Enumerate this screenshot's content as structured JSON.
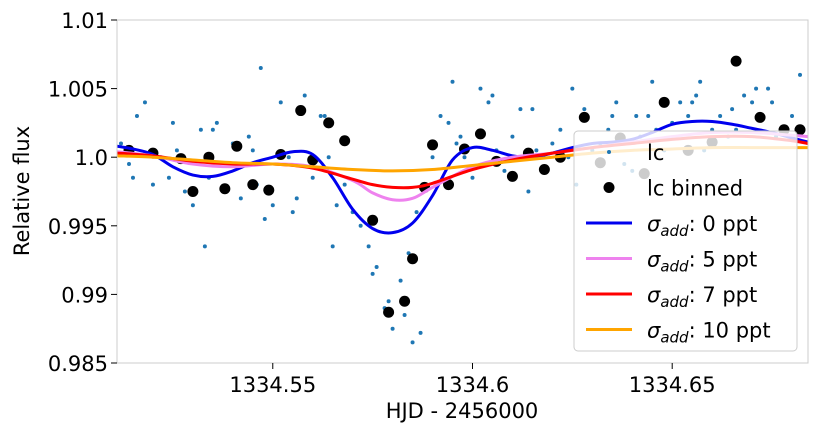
{
  "chart_data": {
    "type": "scatter",
    "xlabel": "HJD - 2456000",
    "ylabel": "Relative flux",
    "xlim": [
      1334.511,
      1334.684
    ],
    "ylim": [
      0.985,
      1.01
    ],
    "x_ticks": [
      1334.55,
      1334.6,
      1334.65
    ],
    "x_tick_labels": [
      "1334.55",
      "1334.6",
      "1334.65"
    ],
    "y_ticks": [
      0.985,
      0.99,
      0.995,
      1.0,
      1.005,
      1.01
    ],
    "y_tick_labels": [
      "0.985",
      "0.99",
      "0.995",
      "1.0",
      "1.005",
      "1.01"
    ],
    "legend_position": "lower-right",
    "series": [
      {
        "name": "lc",
        "kind": "points",
        "color": "#1f77b4",
        "x": [
          1334.512,
          1334.514,
          1334.516,
          1334.518,
          1334.52,
          1334.522,
          1334.524,
          1334.526,
          1334.528,
          1334.53,
          1334.532,
          1334.534,
          1334.536,
          1334.538,
          1334.54,
          1334.542,
          1334.544,
          1334.546,
          1334.548,
          1334.55,
          1334.552,
          1334.554,
          1334.556,
          1334.558,
          1334.56,
          1334.562,
          1334.564,
          1334.566,
          1334.568,
          1334.57,
          1334.572,
          1334.574,
          1334.576,
          1334.578,
          1334.58,
          1334.582,
          1334.584,
          1334.586,
          1334.588,
          1334.59,
          1334.592,
          1334.594,
          1334.596,
          1334.598,
          1334.6,
          1334.602,
          1334.604,
          1334.606,
          1334.608,
          1334.61,
          1334.612,
          1334.614,
          1334.616,
          1334.618,
          1334.62,
          1334.622,
          1334.624,
          1334.626,
          1334.628,
          1334.63,
          1334.632,
          1334.634,
          1334.636,
          1334.638,
          1334.64,
          1334.642,
          1334.644,
          1334.646,
          1334.648,
          1334.65,
          1334.652,
          1334.654,
          1334.656,
          1334.658,
          1334.66,
          1334.662,
          1334.664,
          1334.666,
          1334.668,
          1334.67,
          1334.672,
          1334.674,
          1334.676,
          1334.678,
          1334.68,
          1334.682,
          1334.515,
          1334.525,
          1334.535,
          1334.545,
          1334.555,
          1334.565,
          1334.575,
          1334.585,
          1334.595,
          1334.605,
          1334.615,
          1334.625,
          1334.635,
          1334.645,
          1334.655,
          1334.665,
          1334.675,
          1334.533,
          1334.547,
          1334.563,
          1334.579,
          1334.583,
          1334.587,
          1334.597,
          1334.641,
          1334.657,
          1334.671
        ],
        "y": [
          1.001,
          0.9995,
          1.003,
          1.004,
          0.998,
          1.0,
          0.9985,
          1.0005,
          0.9975,
          0.9965,
          1.002,
          0.9985,
          1.0025,
          0.9975,
          1.001,
          0.997,
          1.0015,
          0.998,
          0.9955,
          0.9965,
          1.004,
          1.0,
          0.997,
          1.0045,
          0.9985,
          1.003,
          1.0,
          0.9965,
          0.998,
          0.996,
          0.995,
          0.9935,
          0.992,
          0.989,
          0.9875,
          0.991,
          0.993,
          0.996,
          0.998,
          1.0,
          1.003,
          1.0025,
          1.001,
          1.0,
          0.9985,
          1.005,
          1.004,
          1.0005,
          0.999,
          1.0015,
          1.0035,
          0.9975,
          1.0005,
          0.999,
          1.001,
          1.002,
          1.0,
          0.998,
          1.0035,
          1.0005,
          1.001,
          1.002,
          1.004,
          0.9995,
          0.999,
          1.0015,
          1.003,
          1.002,
          1.0005,
          1.0025,
          1.004,
          1.003,
          1.0045,
          1.0005,
          1.002,
          1.003,
          1.0015,
          1.002,
          1.0045,
          1.004,
          1.003,
          1.005,
          1.0015,
          1.002,
          1.003,
          1.006,
          0.9985,
          1.0025,
          1.002,
          1.0005,
          0.996,
          0.9935,
          0.9915,
          0.9865,
          1.0055,
          1.0045,
          1.0035,
          1.005,
          1.003,
          1.0055,
          1.004,
          1.0035,
          1.004,
          0.9935,
          1.0065,
          1.003,
          0.9895,
          0.9885,
          0.9872,
          1.0015,
          1.003,
          1.0055,
          1.005
        ]
      },
      {
        "name": "lc binned",
        "kind": "points",
        "color": "#000000",
        "x": [
          1334.514,
          1334.52,
          1334.527,
          1334.53,
          1334.534,
          1334.538,
          1334.541,
          1334.545,
          1334.549,
          1334.552,
          1334.557,
          1334.56,
          1334.564,
          1334.568,
          1334.575,
          1334.579,
          1334.583,
          1334.585,
          1334.588,
          1334.59,
          1334.594,
          1334.598,
          1334.602,
          1334.606,
          1334.61,
          1334.614,
          1334.618,
          1334.622,
          1334.628,
          1334.632,
          1334.637,
          1334.643,
          1334.648,
          1334.654,
          1334.66,
          1334.666,
          1334.672,
          1334.678,
          1334.682
        ],
        "y": [
          1.0005,
          1.0003,
          0.9999,
          0.9975,
          1.0,
          0.9977,
          1.0008,
          0.998,
          0.9976,
          1.0002,
          1.0034,
          0.9998,
          1.0025,
          1.0012,
          0.9954,
          0.9887,
          0.9895,
          0.9926,
          0.9978,
          1.0009,
          0.998,
          1.0006,
          1.0017,
          0.9997,
          0.9986,
          1.0003,
          0.9991,
          1.0,
          1.0029,
          0.9996,
          1.0014,
          0.9988,
          1.004,
          1.0005,
          1.0011,
          1.007,
          1.0029,
          1.002,
          1.002
        ]
      },
      {
        "name": "σ_add: 0 ppt",
        "kind": "line",
        "color": "#0000ee",
        "x": [
          1334.511,
          1334.515,
          1334.52,
          1334.525,
          1334.53,
          1334.535,
          1334.54,
          1334.545,
          1334.55,
          1334.555,
          1334.56,
          1334.565,
          1334.57,
          1334.575,
          1334.58,
          1334.585,
          1334.59,
          1334.595,
          1334.6,
          1334.605,
          1334.61,
          1334.615,
          1334.62,
          1334.625,
          1334.63,
          1334.635,
          1334.64,
          1334.645,
          1334.65,
          1334.655,
          1334.66,
          1334.665,
          1334.67,
          1334.675,
          1334.68,
          1334.684
        ],
        "y": [
          1.0008,
          1.0006,
          1.0002,
          0.9993,
          0.9987,
          0.9986,
          0.999,
          0.9996,
          1.0,
          1.0004,
          1.0002,
          0.9985,
          0.9962,
          0.9948,
          0.9945,
          0.9952,
          0.9972,
          0.9998,
          1.0007,
          1.0005,
          1.0001,
          1.0,
          1.0003,
          1.0007,
          1.001,
          1.0011,
          1.0013,
          1.0018,
          1.0024,
          1.0026,
          1.0026,
          1.0024,
          1.0021,
          1.0018,
          1.0014,
          1.0011
        ]
      },
      {
        "name": "σ_add: 5 ppt",
        "kind": "line",
        "color": "#ee82ee",
        "x": [
          1334.511,
          1334.52,
          1334.53,
          1334.54,
          1334.55,
          1334.56,
          1334.57,
          1334.575,
          1334.58,
          1334.585,
          1334.59,
          1334.6,
          1334.61,
          1334.62,
          1334.63,
          1334.64,
          1334.65,
          1334.66,
          1334.67,
          1334.68,
          1334.684
        ],
        "y": [
          1.0004,
          1.0001,
          0.9995,
          0.9993,
          0.9995,
          0.9993,
          0.9983,
          0.9974,
          0.9969,
          0.997,
          0.9978,
          0.9993,
          1.0,
          1.0003,
          1.0007,
          1.0011,
          1.0015,
          1.0018,
          1.0018,
          1.0016,
          1.0015
        ]
      },
      {
        "name": "σ_add: 7 ppt",
        "kind": "line",
        "color": "#ff0000",
        "x": [
          1334.511,
          1334.52,
          1334.53,
          1334.54,
          1334.55,
          1334.56,
          1334.57,
          1334.575,
          1334.58,
          1334.585,
          1334.59,
          1334.6,
          1334.61,
          1334.62,
          1334.63,
          1334.64,
          1334.65,
          1334.66,
          1334.67,
          1334.68,
          1334.684
        ],
        "y": [
          1.0003,
          1.0001,
          0.9997,
          0.9995,
          0.9995,
          0.9992,
          0.9984,
          0.998,
          0.9978,
          0.9978,
          0.9981,
          0.9991,
          0.9998,
          1.0003,
          1.0007,
          1.001,
          1.0013,
          1.0015,
          1.0015,
          1.0012,
          1.001
        ]
      },
      {
        "name": "σ_add: 10 ppt",
        "kind": "line",
        "color": "#ffa500",
        "x": [
          1334.511,
          1334.52,
          1334.53,
          1334.54,
          1334.55,
          1334.56,
          1334.57,
          1334.58,
          1334.59,
          1334.6,
          1334.61,
          1334.62,
          1334.63,
          1334.64,
          1334.65,
          1334.66,
          1334.67,
          1334.68,
          1334.684
        ],
        "y": [
          1.0001,
          1.0,
          0.9998,
          0.9996,
          0.9995,
          0.9993,
          0.9991,
          0.999,
          0.9991,
          0.9994,
          0.9997,
          1.0,
          1.0003,
          1.0005,
          1.0006,
          1.0007,
          1.0007,
          1.0007,
          1.0007
        ]
      }
    ],
    "legend": [
      {
        "label": "lc",
        "marker": "dot",
        "color": "#1f77b4"
      },
      {
        "label": "lc binned",
        "marker": "bigdot",
        "color": "#000000"
      },
      {
        "label_main": "σ",
        "label_sub": "add",
        "label_rest": ": 0 ppt",
        "marker": "line",
        "color": "#0000ee"
      },
      {
        "label_main": "σ",
        "label_sub": "add",
        "label_rest": ": 5 ppt",
        "marker": "line",
        "color": "#ee82ee"
      },
      {
        "label_main": "σ",
        "label_sub": "add",
        "label_rest": ": 7 ppt",
        "marker": "line",
        "color": "#ff0000"
      },
      {
        "label_main": "σ",
        "label_sub": "add",
        "label_rest": ": 10 ppt",
        "marker": "line",
        "color": "#ffa500"
      }
    ]
  }
}
